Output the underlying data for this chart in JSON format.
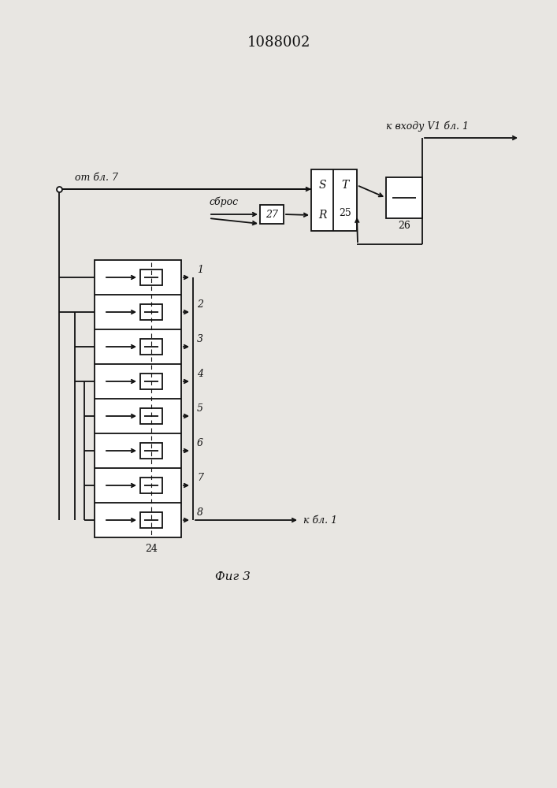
{
  "title": "1088002",
  "fig_label": "Фиг 3",
  "bg_color": "#e8e6e2",
  "line_color": "#111111",
  "n_rows": 8,
  "row_labels": [
    "1",
    "2",
    "3",
    "4",
    "5",
    "6",
    "7",
    "8"
  ],
  "block24_label": "24",
  "block25_label": "25",
  "block26_label": "26",
  "block27_label": "27",
  "label_S": "S",
  "label_T": "T",
  "label_R": "R",
  "text_ot_bl7": "от бл. 7",
  "text_sbros": "сброс",
  "text_k_bl1": "к бл. 1",
  "text_k_vhodu": "к входу V1 бл. 1"
}
